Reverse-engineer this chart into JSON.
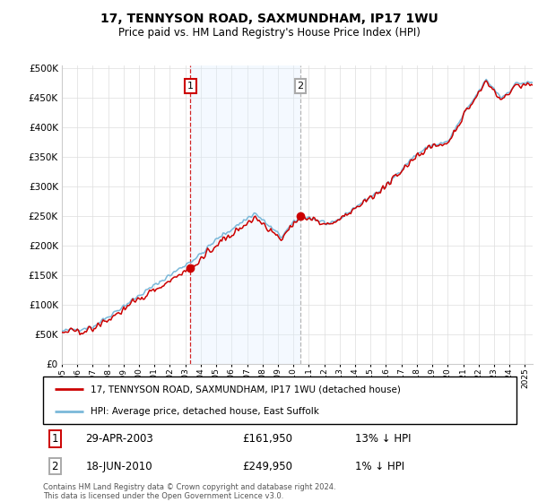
{
  "title": "17, TENNYSON ROAD, SAXMUNDHAM, IP17 1WU",
  "subtitle": "Price paid vs. HM Land Registry's House Price Index (HPI)",
  "legend_line1": "17, TENNYSON ROAD, SAXMUNDHAM, IP17 1WU (detached house)",
  "legend_line2": "HPI: Average price, detached house, East Suffolk",
  "sale1_date": "29-APR-2003",
  "sale1_price": 161950,
  "sale1_year": 2003.33,
  "sale2_date": "18-JUN-2010",
  "sale2_price": 249950,
  "sale2_year": 2010.46,
  "sale1_pct": "13% ↓ HPI",
  "sale2_pct": "1% ↓ HPI",
  "footer": "Contains HM Land Registry data © Crown copyright and database right 2024.\nThis data is licensed under the Open Government Licence v3.0.",
  "hpi_color": "#7ab8d9",
  "price_color": "#cc0000",
  "sale_region_color": "#ddeeff",
  "sale1_vline_color": "#cc0000",
  "sale2_vline_color": "#aaaaaa",
  "sale1_box_color": "#cc0000",
  "sale2_box_color": "#aaaaaa",
  "ylim_min": 0,
  "ylim_max": 500000,
  "start_year": 1995,
  "end_year": 2025
}
